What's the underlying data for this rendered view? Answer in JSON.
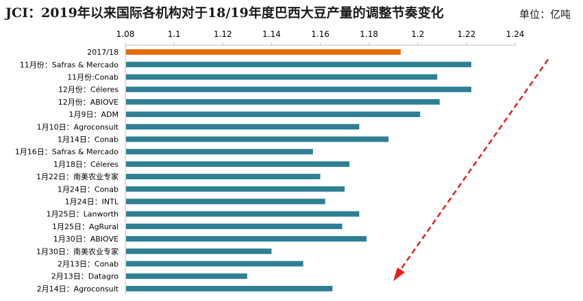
{
  "header": {
    "title": "JCI：2019年以来国际各机构对于18/19年度巴西大豆产量的调整节奏变化",
    "unit": "单位：亿吨"
  },
  "colors": {
    "bar": "#2f7f94",
    "highlight": "#e36c0a",
    "arrow": "#e0201b",
    "axis": "#bfbfbf"
  },
  "chart_data": {
    "type": "bar",
    "orientation": "horizontal",
    "title": "JCI：2019年以来国际各机构对于18/19年度巴西大豆产量的调整节奏变化",
    "unit": "单位：亿吨",
    "xlim": [
      1.08,
      1.24
    ],
    "xticks": [
      "1.08",
      "1.1",
      "1.12",
      "1.14",
      "1.16",
      "1.18",
      "1.2",
      "1.22",
      "1.24"
    ],
    "xaxis_position": "top",
    "grid": false,
    "categories": [
      "2017/18",
      "11月份：Safras & Mercado",
      "11月份:Conab",
      "12月份：Céleres",
      "12月份：ABIOVE",
      "1月9日：ADM",
      "1月10日：Agroconsult",
      "1月14日：Conab",
      "1月16日：Safras & Mercado",
      "1月18日：Céleres",
      "1月22日：南美农业专家",
      "1月24日：Conab",
      "1月24日：INTL",
      "1月25日：Lanworth",
      "1月25日：AgRural",
      "1月30日：ABIOVE",
      "1月30日：南美农业专家",
      "2月13日：Conab",
      "2月13日：Datagro",
      "2月14日：Agroconsult"
    ],
    "values": [
      1.193,
      1.222,
      1.208,
      1.222,
      1.209,
      1.201,
      1.176,
      1.188,
      1.157,
      1.172,
      1.16,
      1.17,
      1.162,
      1.176,
      1.169,
      1.179,
      1.14,
      1.153,
      1.13,
      1.165
    ],
    "highlight_index": 0
  }
}
